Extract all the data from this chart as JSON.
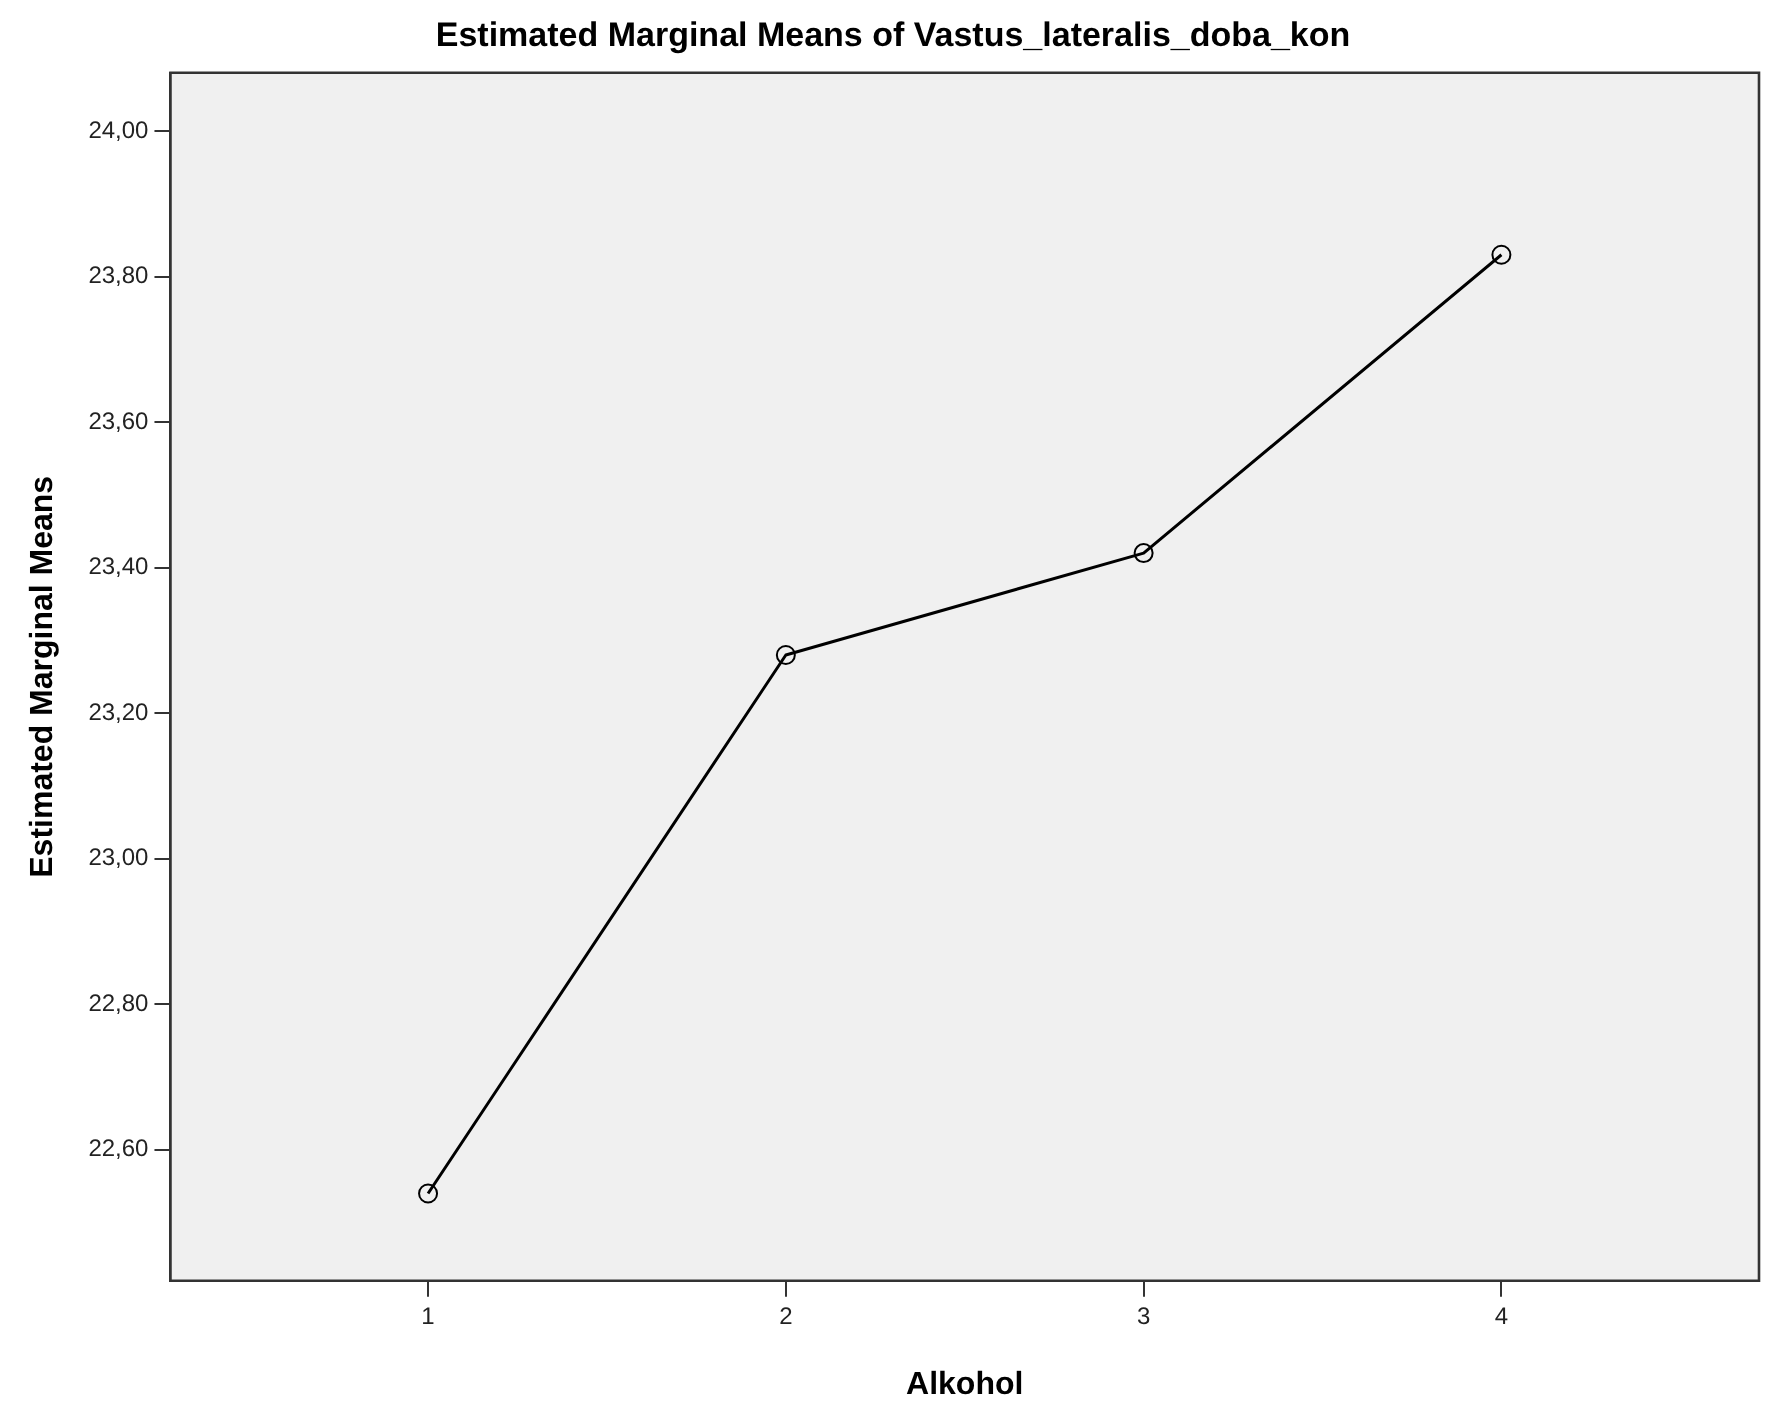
{
  "chart_data": {
    "type": "line",
    "title": "Estimated Marginal Means of Vastus_lateralis_doba_kon",
    "xlabel": "Alkohol",
    "ylabel": "Estimated Marginal Means",
    "x": [
      1,
      2,
      3,
      4
    ],
    "series": [
      {
        "color": "#000000",
        "values": [
          22.54,
          23.28,
          23.42,
          23.83
        ]
      }
    ],
    "xlim": [
      0.28,
      4.72
    ],
    "xticks": [
      1,
      2,
      3,
      4
    ],
    "ylim": [
      22.42,
      24.08
    ],
    "yticks": [
      {
        "value": 22.6,
        "label": "22,60"
      },
      {
        "value": 22.8,
        "label": "22,80"
      },
      {
        "value": 23,
        "label": "23,00"
      },
      {
        "value": 23.2,
        "label": "23,20"
      },
      {
        "value": 23.4,
        "label": "23,40"
      },
      {
        "value": 23.6,
        "label": "23,60"
      },
      {
        "value": 23.8,
        "label": "23,80"
      },
      {
        "value": 24,
        "label": "24,00"
      }
    ],
    "grid": false,
    "legend": false,
    "marker": "circle",
    "line_style": "solid"
  }
}
